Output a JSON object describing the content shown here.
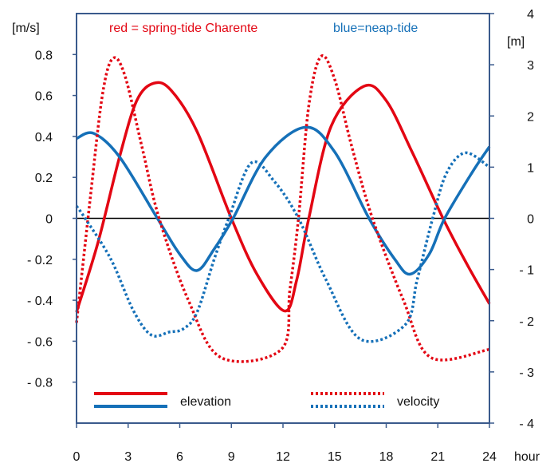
{
  "chart_data": {
    "type": "line",
    "header_left": "red = spring-tide Charente",
    "header_right": "blue=neap-tide",
    "xlabel": "hour",
    "ylabel_left": "[m/s]",
    "ylabel_right": "[m]",
    "xlim": [
      0,
      24
    ],
    "ylim_left": [
      -1.0,
      1.0
    ],
    "ylim_right": [
      -4,
      4
    ],
    "x_ticks": [
      "0",
      "3",
      "6",
      "9",
      "12",
      "15",
      "18",
      "21",
      "24"
    ],
    "y_left_ticks": [
      {
        "v": 0.8,
        "label": "0.8"
      },
      {
        "v": 0.6,
        "label": "0.6"
      },
      {
        "v": 0.4,
        "label": "0.4"
      },
      {
        "v": 0.2,
        "label": "0.2"
      },
      {
        "v": 0,
        "label": "0"
      },
      {
        "v": -0.2,
        "label": "- 0.2"
      },
      {
        "v": -0.4,
        "label": "- 0.4"
      },
      {
        "v": -0.6,
        "label": "- 0.6"
      },
      {
        "v": -0.8,
        "label": "- 0.8"
      }
    ],
    "y_right_ticks": [
      {
        "v": 4,
        "label": "4"
      },
      {
        "v": 3,
        "label": "3"
      },
      {
        "v": 2,
        "label": "2"
      },
      {
        "v": 1,
        "label": "1"
      },
      {
        "v": 0,
        "label": "0"
      },
      {
        "v": -1,
        "label": "- 1"
      },
      {
        "v": -2,
        "label": "- 2"
      },
      {
        "v": -3,
        "label": "- 3"
      },
      {
        "v": -4,
        "label": "- 4"
      }
    ],
    "legend": {
      "elevation": "elevation",
      "velocity": "velocity",
      "placement": "bottom"
    },
    "colors": {
      "spring": "#e30613",
      "neap": "#1570b8",
      "frame": "#3a5a8c"
    },
    "series": [
      {
        "id": "spring-elevation",
        "axis": "right",
        "color_key": "spring",
        "style": "solid",
        "x": [
          0,
          1.25,
          2.5,
          3.5,
          4.5,
          5.5,
          7,
          9,
          10.5,
          12.1,
          12.8,
          13.5,
          14.8,
          16.7,
          18,
          19.5,
          21.3,
          22.7,
          24
        ],
        "y": [
          -1.83,
          -0.47,
          1.2,
          2.3,
          2.64,
          2.5,
          1.7,
          0,
          -1.1,
          -1.81,
          -1.2,
          0,
          1.8,
          2.58,
          2.3,
          1.3,
          0,
          -0.9,
          -1.67
        ]
      },
      {
        "id": "neap-elevation",
        "axis": "right",
        "color_key": "neap",
        "style": "solid",
        "x": [
          0,
          1.0,
          2.5,
          4.7,
          6,
          7.0,
          8,
          9.1,
          11,
          13.3,
          15,
          17.0,
          18.5,
          19.4,
          20.5,
          21.4,
          23,
          24
        ],
        "y": [
          1.56,
          1.66,
          1.2,
          0,
          -0.7,
          -1.02,
          -0.6,
          0,
          1.2,
          1.78,
          1.3,
          0,
          -0.8,
          -1.09,
          -0.7,
          0,
          0.9,
          1.4
        ]
      },
      {
        "id": "spring-velocity",
        "axis": "left",
        "color_key": "spring",
        "style": "dotted",
        "x": [
          0,
          0.8,
          1.5,
          2.1,
          2.8,
          3.8,
          4.8,
          6.5,
          8.4,
          11.9,
          12.4,
          12.9,
          13.5,
          14.2,
          15,
          16,
          17.2,
          19,
          20.6,
          24
        ],
        "y": [
          -0.51,
          0.1,
          0.6,
          0.78,
          0.7,
          0.35,
          0,
          -0.4,
          -0.68,
          -0.64,
          -0.35,
          0,
          0.55,
          0.79,
          0.68,
          0.35,
          0,
          -0.4,
          -0.68,
          -0.64
        ]
      },
      {
        "id": "neap-velocity",
        "axis": "left",
        "color_key": "neap",
        "style": "dotted",
        "x": [
          0,
          0.5,
          2,
          3.3,
          4.35,
          5.4,
          6.2,
          7.0,
          8.0,
          8.85,
          10.15,
          11.5,
          12.9,
          14.5,
          16.5,
          19.1,
          19.8,
          20.7,
          21.5,
          22.6,
          24
        ],
        "y": [
          0.06,
          0,
          -0.2,
          -0.45,
          -0.57,
          -0.555,
          -0.54,
          -0.46,
          -0.2,
          0,
          0.27,
          0.18,
          0,
          -0.3,
          -0.59,
          -0.52,
          -0.3,
          0,
          0.22,
          0.32,
          0.25
        ]
      }
    ]
  }
}
